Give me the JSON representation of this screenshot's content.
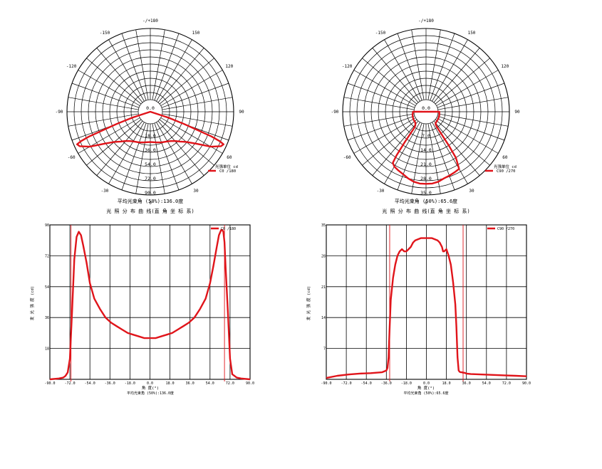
{
  "chart_data": [
    {
      "type": "polar",
      "angle_labels": [
        "-/+180",
        "150",
        "120",
        "90",
        "60",
        "30",
        "0",
        "-30",
        "-60",
        "-90",
        "-120",
        "-150"
      ],
      "radial_ticks": [
        "0.0",
        "18.0",
        "36.0",
        "54.0",
        "72.0",
        "90.0"
      ],
      "rmax": 90,
      "unit_label": "光强单位  cd",
      "series": [
        {
          "name": "C0  /180",
          "color": "#e0141a",
          "angles": [
            -74,
            -72,
            -70,
            -68,
            -67,
            -66,
            -64,
            -60,
            -55,
            -50,
            -45,
            -40,
            -35,
            -30,
            -20,
            -10,
            0,
            10,
            20,
            30,
            35,
            40,
            45,
            50,
            55,
            60,
            64,
            66,
            67,
            68,
            70,
            72,
            74
          ],
          "values": [
            0,
            8,
            30,
            68,
            80,
            86,
            84,
            73,
            55,
            44,
            38,
            33,
            30,
            28,
            26,
            24,
            23,
            24,
            26,
            28,
            30,
            33,
            38,
            44,
            55,
            73,
            84,
            86,
            80,
            68,
            30,
            8,
            0
          ]
        }
      ],
      "beam_angle_text": "平均光束角  (50%):136.0度",
      "caption": "光 照 分 布 曲 线(直 角 坐 标 系)"
    },
    {
      "type": "polar",
      "angle_labels": [
        "-/+180",
        "150",
        "120",
        "90",
        "60",
        "30",
        "0",
        "-30",
        "-60",
        "-90",
        "-120",
        "-150"
      ],
      "radial_ticks": [
        "0.0",
        "7.0",
        "14.0",
        "21.0",
        "28.0",
        "35.0"
      ],
      "rmax": 35,
      "unit_label": "光强单位  cd",
      "series": [
        {
          "name": "C90 /270",
          "color": "#e0141a",
          "angles": [
            -90,
            -75,
            -60,
            -45,
            -38,
            -36,
            -35,
            -34,
            -33,
            -30,
            -25,
            -20,
            -15,
            -10,
            -5,
            0,
            5,
            10,
            15,
            20,
            25,
            30,
            33,
            34,
            35,
            36,
            38,
            45,
            60,
            75,
            90
          ],
          "values": [
            0.5,
            0.9,
            1.3,
            1.5,
            2.5,
            4,
            12,
            20,
            24,
            25.2,
            26,
            26.8,
            28,
            29,
            29.5,
            29.5,
            29.5,
            29,
            28,
            27.5,
            27,
            26.5,
            21,
            14,
            5,
            2.5,
            1.6,
            1.2,
            1,
            0.8,
            0.6
          ]
        }
      ],
      "beam_angle_text": "平均光束角  (50%):65.6度",
      "caption": "光 照 分 布 曲 线(直 角 坐 标 系)"
    },
    {
      "type": "line",
      "x_ticks": [
        "-90.0",
        "-72.0",
        "-54.0",
        "-36.0",
        "-18.0",
        "0.0",
        "18.0",
        "36.0",
        "54.0",
        "72.0",
        "90.0"
      ],
      "y_ticks": [
        "18",
        "36",
        "54",
        "72",
        "90"
      ],
      "xlim": [
        -90,
        90
      ],
      "ylim": [
        0,
        90
      ],
      "xlabel": "角 度(°)",
      "ylabel": "发 光 强 度 (cd)",
      "footer": "平均光束角  (50%):136.0度",
      "beam_lines_x": [
        -71,
        67
      ],
      "series": [
        {
          "name": "C0  /180",
          "color": "#e0141a",
          "x": [
            -90,
            -82,
            -78,
            -76,
            -74,
            -72,
            -70,
            -68,
            -66,
            -64,
            -62,
            -60,
            -57,
            -54,
            -50,
            -45,
            -40,
            -35,
            -30,
            -25,
            -20,
            -15,
            -10,
            -5,
            0,
            5,
            10,
            15,
            20,
            25,
            30,
            35,
            40,
            45,
            50,
            54,
            57,
            60,
            62,
            64,
            65,
            66,
            67,
            68,
            70,
            72,
            74,
            78,
            82,
            90
          ],
          "y": [
            0,
            0.5,
            1,
            2,
            4,
            12,
            40,
            70,
            83,
            86,
            84,
            78,
            68,
            56,
            47,
            41,
            36,
            33,
            31,
            29,
            27,
            26,
            25,
            24,
            24,
            24,
            25,
            26,
            27,
            29,
            31,
            33,
            36,
            41,
            47,
            56,
            66,
            77,
            84,
            87,
            87,
            86,
            80,
            65,
            40,
            12,
            3,
            1,
            0.5,
            0
          ]
        }
      ]
    },
    {
      "type": "line",
      "x_ticks": [
        "-90.0",
        "-72.0",
        "-54.0",
        "-36.0",
        "-18.0",
        "0.0",
        "18.0",
        "36.0",
        "54.0",
        "72.0",
        "90.0"
      ],
      "y_ticks": [
        "7",
        "14",
        "21",
        "28",
        "35"
      ],
      "xlim": [
        -90,
        90
      ],
      "ylim": [
        0,
        35
      ],
      "xlabel": "角 度(°)",
      "ylabel": "发 光 强 度 (cd)",
      "footer": "平均光束角  (50%):65.6度",
      "beam_lines_x": [
        -33,
        33
      ],
      "series": [
        {
          "name": "C90 /270",
          "color": "#e0141a",
          "x": [
            -90,
            -80,
            -70,
            -60,
            -50,
            -40,
            -36,
            -35,
            -34,
            -33,
            -32,
            -30,
            -28,
            -26,
            -24,
            -22,
            -20,
            -18,
            -16,
            -14,
            -12,
            -10,
            -5,
            0,
            5,
            10,
            12,
            14,
            15,
            16,
            18,
            20,
            22,
            24,
            26,
            27,
            28,
            29,
            30,
            31,
            32,
            33,
            34,
            35,
            36,
            40,
            50,
            60,
            70,
            80,
            90
          ],
          "y": [
            0.3,
            0.8,
            1.1,
            1.3,
            1.4,
            1.6,
            2,
            2.6,
            5,
            12,
            18,
            23,
            26,
            28,
            29,
            29.5,
            29,
            29,
            29.5,
            30,
            31,
            31.5,
            32,
            32,
            32,
            31.5,
            31,
            30,
            29,
            29,
            29.5,
            28,
            26,
            22,
            17,
            12,
            5,
            2,
            1.7,
            1.6,
            1.6,
            1.5,
            1.5,
            1.4,
            1.3,
            1.2,
            1.1,
            1.0,
            0.9,
            0.8,
            0.7
          ]
        }
      ]
    }
  ]
}
